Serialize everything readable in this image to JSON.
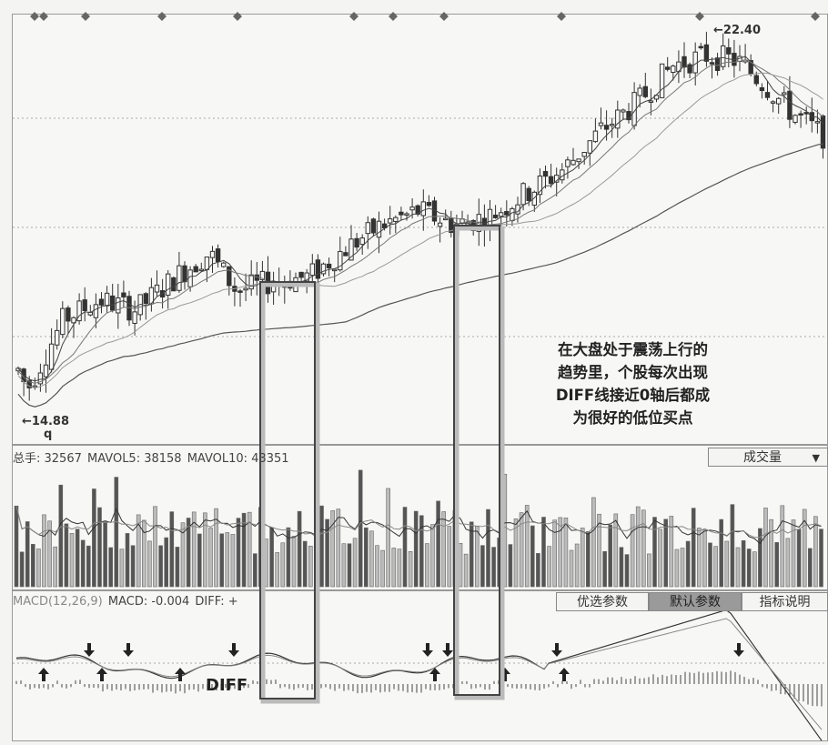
{
  "chart_data": [
    {
      "type": "candlestick",
      "panel": "price",
      "annotations": {
        "high_label": "22.40",
        "low_label": "14.88",
        "low_marker": "q"
      },
      "note": [
        "在大盘处于震荡上行的",
        "趋势里，个股每次出现",
        "DIFF线接近0轴后都成",
        "为很好的低位买点"
      ],
      "y_range": [
        14.0,
        23.0
      ]
    },
    {
      "type": "bar",
      "panel": "volume",
      "header": {
        "total": "总手: 32567",
        "mavol5": "MAVOL5: 38158",
        "mavol10": "MAVOL10: 43351"
      },
      "indicator_select": "成交量"
    },
    {
      "type": "line",
      "panel": "macd",
      "header": {
        "name": "MACD(12,26,9)",
        "macd": "MACD: -0.004",
        "diff": "DIFF: +"
      },
      "series_label": "DIFF",
      "tabs": [
        "优选参数",
        "默认参数",
        "指标说明"
      ],
      "active_tab": "默认参数"
    }
  ]
}
